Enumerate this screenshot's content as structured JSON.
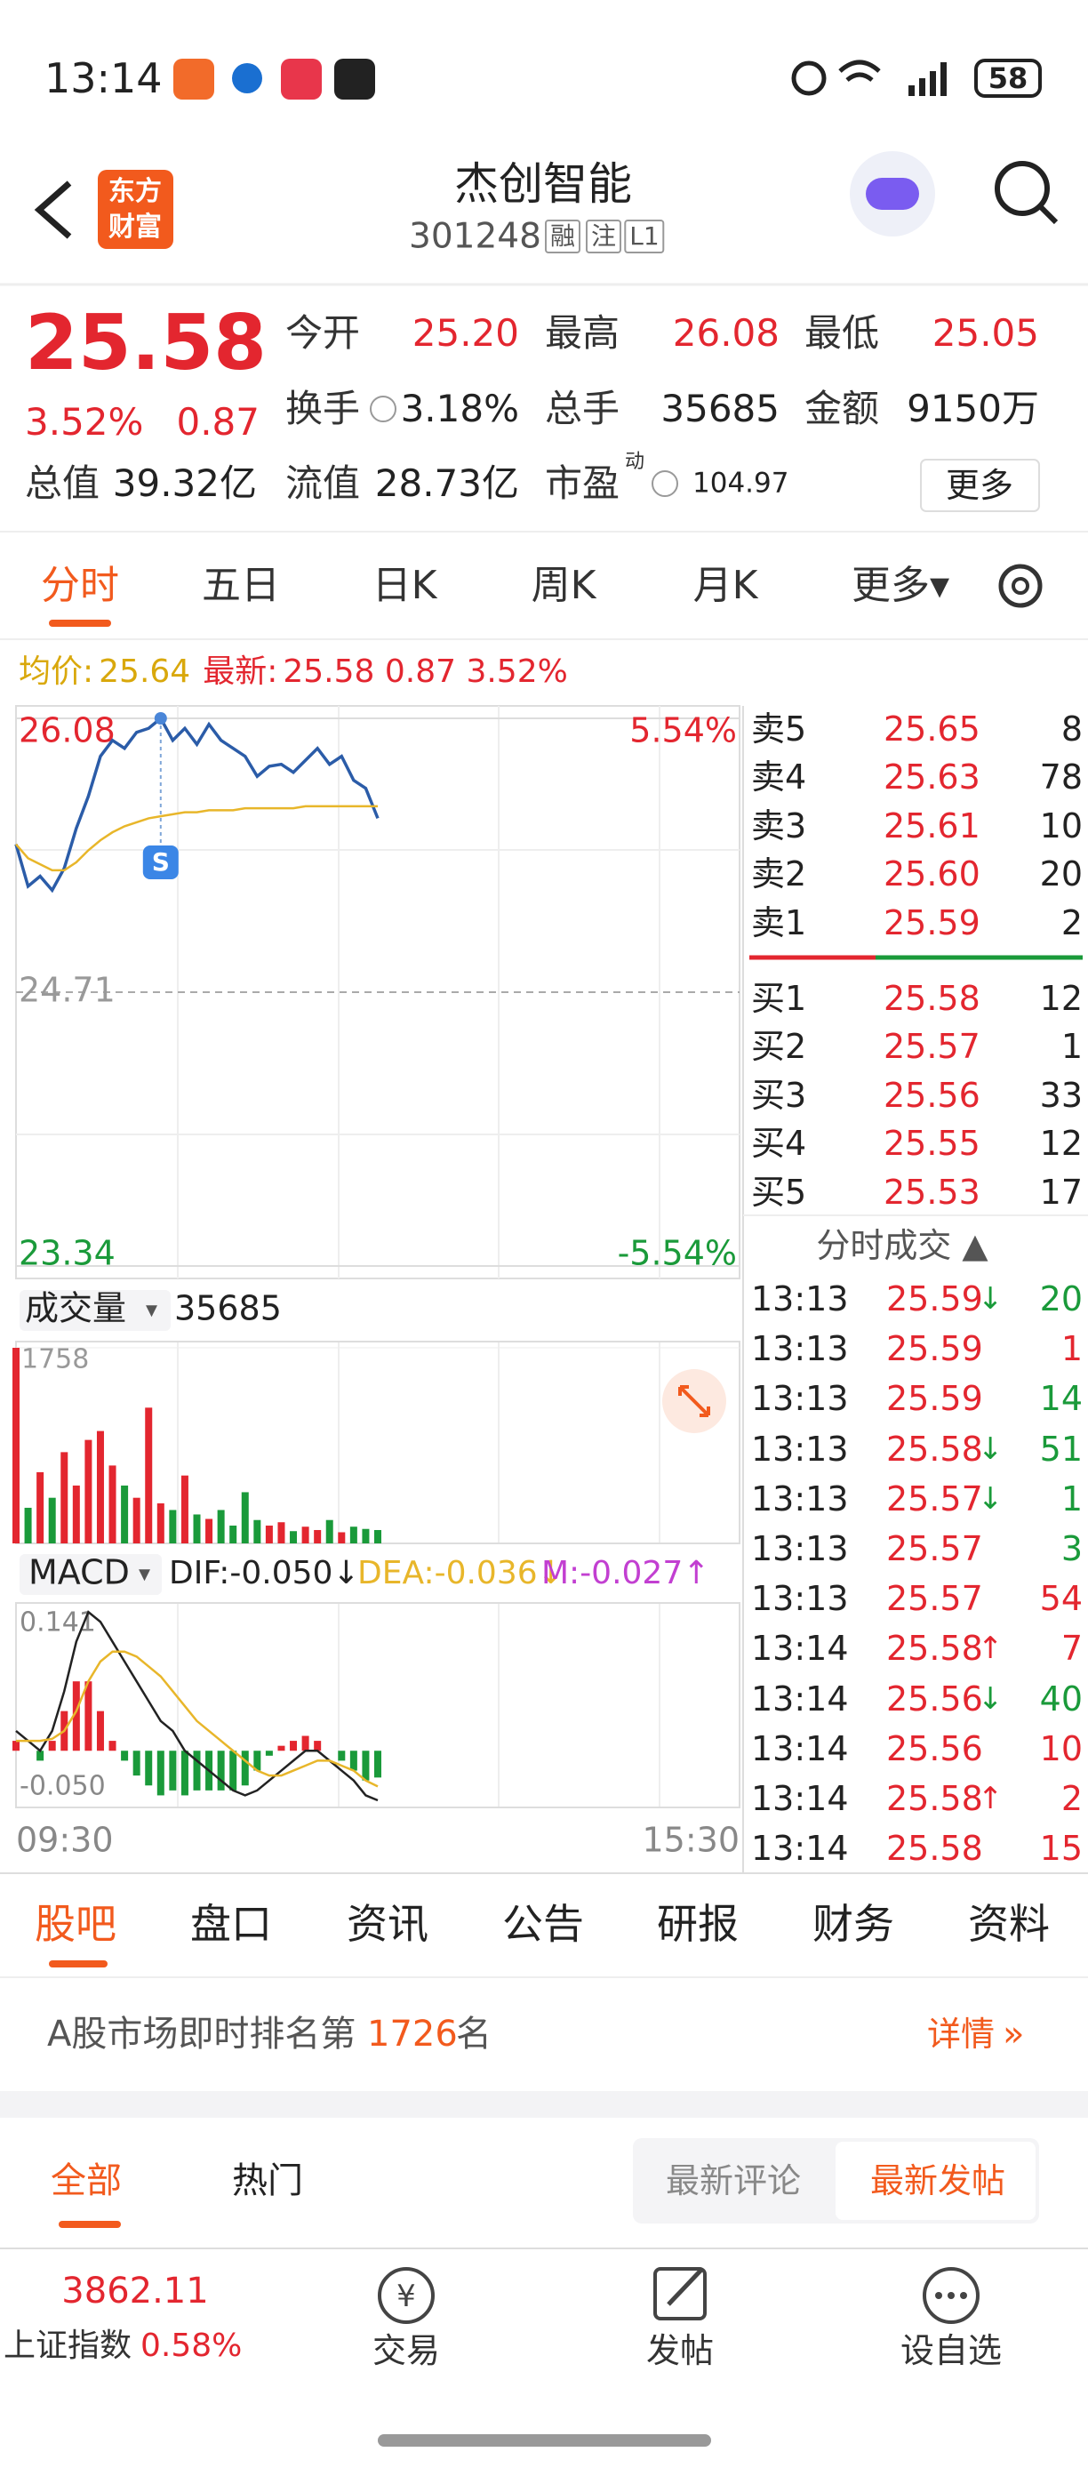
{
  "status": {
    "time": "13:14",
    "battery": "58"
  },
  "header": {
    "logo": [
      "东方",
      "财富"
    ],
    "title": "杰创智能",
    "code": "301248",
    "badges": [
      "融",
      "注",
      "L1"
    ]
  },
  "quote": {
    "price": "25.58",
    "change_pct": "3.52%",
    "change": "0.87",
    "more": "更多",
    "fields": [
      {
        "label": "今开",
        "value": "25.20",
        "color": "#e3262f"
      },
      {
        "label": "最高",
        "value": "26.08",
        "color": "#e3262f"
      },
      {
        "label": "最低",
        "value": "25.05",
        "color": "#e3262f"
      },
      {
        "label": "换手",
        "value": "3.18%",
        "color": "#222222"
      },
      {
        "label": "总手",
        "value": "35685",
        "color": "#222222"
      },
      {
        "label": "金额",
        "value": "9150万",
        "color": "#222222"
      },
      {
        "label": "总值",
        "value": "39.32亿",
        "color": "#222222"
      },
      {
        "label": "流值",
        "value": "28.73亿",
        "color": "#222222"
      },
      {
        "label": "市盈",
        "sup": "动",
        "value": "104.97",
        "color": "#222222"
      }
    ]
  },
  "tabs": {
    "items": [
      "分时",
      "五日",
      "日K",
      "周K",
      "月K",
      "更多▾"
    ]
  },
  "info": {
    "avg_label": "均价:",
    "avg": "25.64",
    "latest_label": "最新:",
    "latest": "25.58 0.87 3.52%"
  },
  "chart_data": [
    {
      "type": "line",
      "marker": "S",
      "xlim": [
        0,
        240
      ],
      "ylim": [
        23.34,
        26.08
      ],
      "yticks": [
        23.34,
        24.71,
        26.08
      ],
      "ytick_colors": [
        "#1a9a3a",
        "#999999",
        "#e3262f"
      ],
      "y2lim": [
        -5.54,
        5.54
      ],
      "y2ticks": [
        {
          "value": -5.54,
          "label": "-5.54%"
        },
        {
          "value": 5.54,
          "label": "5.54%"
        }
      ],
      "x": [
        0,
        4,
        8,
        12,
        16,
        20,
        24,
        28,
        32,
        36,
        40,
        44,
        48,
        52,
        56,
        60,
        64,
        68,
        72,
        76,
        80,
        84,
        88,
        92,
        96,
        100,
        104,
        108,
        112,
        116,
        120
      ],
      "series": [
        {
          "color": "#2b5ca8",
          "values": [
            25.45,
            25.24,
            25.29,
            25.22,
            25.33,
            25.53,
            25.69,
            25.89,
            25.97,
            25.93,
            26.01,
            26.03,
            26.08,
            25.97,
            26.03,
            25.95,
            26.05,
            25.97,
            25.93,
            25.89,
            25.79,
            25.84,
            25.85,
            25.81,
            25.87,
            25.93,
            25.85,
            25.89,
            25.77,
            25.73,
            25.58
          ]
        },
        {
          "color": "#e8b62a",
          "values": [
            25.45,
            25.38,
            25.35,
            25.32,
            25.32,
            25.36,
            25.42,
            25.47,
            25.51,
            25.54,
            25.56,
            25.58,
            25.59,
            25.6,
            25.61,
            25.61,
            25.62,
            25.62,
            25.62,
            25.63,
            25.63,
            25.63,
            25.63,
            25.63,
            25.64,
            25.64,
            25.64,
            25.64,
            25.64,
            25.64,
            25.64
          ]
        }
      ]
    },
    {
      "type": "bar",
      "title": "成交量",
      "selector": "▾",
      "total": "35685",
      "xlim": [
        0,
        240
      ],
      "ylim": [
        0,
        1758
      ],
      "yticks": [
        1758
      ],
      "x": [
        0,
        4,
        8,
        12,
        16,
        20,
        24,
        28,
        32,
        36,
        40,
        44,
        48,
        52,
        56,
        60,
        64,
        68,
        72,
        76,
        80,
        84,
        88,
        92,
        96,
        100,
        104,
        108,
        112,
        116,
        120
      ],
      "values": [
        1758,
        320,
        640,
        410,
        820,
        520,
        930,
        1010,
        700,
        520,
        410,
        1220,
        360,
        300,
        610,
        260,
        220,
        300,
        160,
        460,
        210,
        160,
        190,
        110,
        150,
        120,
        210,
        100,
        150,
        130,
        120
      ],
      "colors": [
        "#e3262f",
        "#1a9a3a",
        "#e3262f",
        "#1a9a3a",
        "#e3262f",
        "#e3262f",
        "#e3262f",
        "#e3262f",
        "#e3262f",
        "#1a9a3a",
        "#e3262f",
        "#e3262f",
        "#e3262f",
        "#1a9a3a",
        "#e3262f",
        "#1a9a3a",
        "#e3262f",
        "#1a9a3a",
        "#1a9a3a",
        "#1a9a3a",
        "#1a9a3a",
        "#e3262f",
        "#e3262f",
        "#1a9a3a",
        "#e3262f",
        "#e3262f",
        "#1a9a3a",
        "#e3262f",
        "#1a9a3a",
        "#1a9a3a",
        "#1a9a3a"
      ]
    },
    {
      "type": "macd",
      "title": "MACD",
      "selector": "▾",
      "labels": [
        {
          "text": "DIF:-0.050↓",
          "color": "#222222"
        },
        {
          "text": "DEA:-0.036↓",
          "color": "#e8b62a"
        },
        {
          "text": "M:-0.027↑",
          "color": "#c23fd1"
        }
      ],
      "xlim": [
        0,
        240
      ],
      "xticks": [
        {
          "value": 0,
          "label": "09:30"
        },
        {
          "value": 240,
          "label": "15:30"
        }
      ],
      "ylim": [
        -0.05,
        0.141
      ],
      "yticks": [
        {
          "value": -0.05,
          "label": "-0.050"
        },
        0.141
      ],
      "x": [
        0,
        4,
        8,
        12,
        16,
        20,
        24,
        28,
        32,
        36,
        40,
        44,
        48,
        52,
        56,
        60,
        64,
        68,
        72,
        76,
        80,
        84,
        88,
        92,
        96,
        100,
        104,
        108,
        112,
        116,
        120
      ],
      "series": [
        {
          "name": "DIF",
          "color": "#222222",
          "values": [
            0.02,
            0.01,
            0.0,
            0.02,
            0.06,
            0.11,
            0.14,
            0.13,
            0.11,
            0.09,
            0.07,
            0.05,
            0.03,
            0.02,
            0.0,
            -0.01,
            -0.02,
            -0.03,
            -0.04,
            -0.045,
            -0.04,
            -0.03,
            -0.02,
            -0.01,
            0.0,
            0.0,
            -0.01,
            -0.02,
            -0.03,
            -0.045,
            -0.05
          ]
        },
        {
          "name": "DEA",
          "color": "#e8b62a",
          "values": [
            0.01,
            0.01,
            0.01,
            0.012,
            0.02,
            0.04,
            0.07,
            0.09,
            0.1,
            0.1,
            0.095,
            0.085,
            0.075,
            0.06,
            0.045,
            0.03,
            0.02,
            0.01,
            0.0,
            -0.01,
            -0.02,
            -0.025,
            -0.025,
            -0.02,
            -0.015,
            -0.01,
            -0.01,
            -0.015,
            -0.02,
            -0.03,
            -0.036
          ]
        }
      ],
      "histogram": [
        0.01,
        0.0,
        -0.01,
        0.01,
        0.04,
        0.07,
        0.07,
        0.04,
        0.01,
        -0.01,
        -0.025,
        -0.035,
        -0.045,
        -0.04,
        -0.045,
        -0.04,
        -0.04,
        -0.04,
        -0.04,
        -0.035,
        -0.02,
        -0.005,
        0.005,
        0.01,
        0.015,
        0.01,
        0.0,
        -0.01,
        -0.02,
        -0.03,
        -0.027
      ]
    }
  ],
  "order_book": {
    "asks": [
      {
        "label": "卖5",
        "price": "25.65",
        "qty": "8"
      },
      {
        "label": "卖4",
        "price": "25.63",
        "qty": "78"
      },
      {
        "label": "卖3",
        "price": "25.61",
        "qty": "10"
      },
      {
        "label": "卖2",
        "price": "25.60",
        "qty": "20"
      },
      {
        "label": "卖1",
        "price": "25.59",
        "qty": "2"
      }
    ],
    "bids": [
      {
        "label": "买1",
        "price": "25.58",
        "qty": "12"
      },
      {
        "label": "买2",
        "price": "25.57",
        "qty": "1"
      },
      {
        "label": "买3",
        "price": "25.56",
        "qty": "33"
      },
      {
        "label": "买4",
        "price": "25.55",
        "qty": "12"
      },
      {
        "label": "买5",
        "price": "25.53",
        "qty": "17"
      }
    ]
  },
  "trades": {
    "title": "分时成交 ▲",
    "rows": [
      {
        "time": "13:13",
        "price": "25.59",
        "arrow": "↓",
        "qty": "20",
        "color": "#1a9a3a"
      },
      {
        "time": "13:13",
        "price": "25.59",
        "arrow": null,
        "qty": "1",
        "color": "#e3262f"
      },
      {
        "time": "13:13",
        "price": "25.59",
        "arrow": null,
        "qty": "14",
        "color": "#1a9a3a"
      },
      {
        "time": "13:13",
        "price": "25.58",
        "arrow": "↓",
        "qty": "51",
        "color": "#1a9a3a"
      },
      {
        "time": "13:13",
        "price": "25.57",
        "arrow": "↓",
        "qty": "1",
        "color": "#1a9a3a"
      },
      {
        "time": "13:13",
        "price": "25.57",
        "arrow": null,
        "qty": "3",
        "color": "#1a9a3a"
      },
      {
        "time": "13:13",
        "price": "25.57",
        "arrow": null,
        "qty": "54",
        "color": "#e3262f"
      },
      {
        "time": "13:14",
        "price": "25.58",
        "arrow": "↑",
        "qty": "7",
        "color": "#e3262f"
      },
      {
        "time": "13:14",
        "price": "25.56",
        "arrow": "↓",
        "qty": "40",
        "color": "#1a9a3a"
      },
      {
        "time": "13:14",
        "price": "25.56",
        "arrow": null,
        "qty": "10",
        "color": "#e3262f"
      },
      {
        "time": "13:14",
        "price": "25.58",
        "arrow": "↑",
        "qty": "2",
        "color": "#e3262f"
      },
      {
        "time": "13:14",
        "price": "25.58",
        "arrow": null,
        "qty": "15",
        "color": "#e3262f"
      }
    ]
  },
  "sections": [
    "股吧",
    "盘口",
    "资讯",
    "公告",
    "研报",
    "财务",
    "资料"
  ],
  "rank": {
    "prefix": "A股市场即时排名第",
    "rank": "1726",
    "suffix": "名",
    "link": "详情"
  },
  "feed": {
    "tabs": [
      "全部",
      "热门"
    ],
    "sort": [
      "最新评论",
      "最新发帖"
    ]
  },
  "bottom_bar": {
    "index_value": "3862.11",
    "index_name": "上证指数",
    "index_change": "0.58%",
    "actions": [
      "交易",
      "发帖",
      "设自选"
    ]
  }
}
